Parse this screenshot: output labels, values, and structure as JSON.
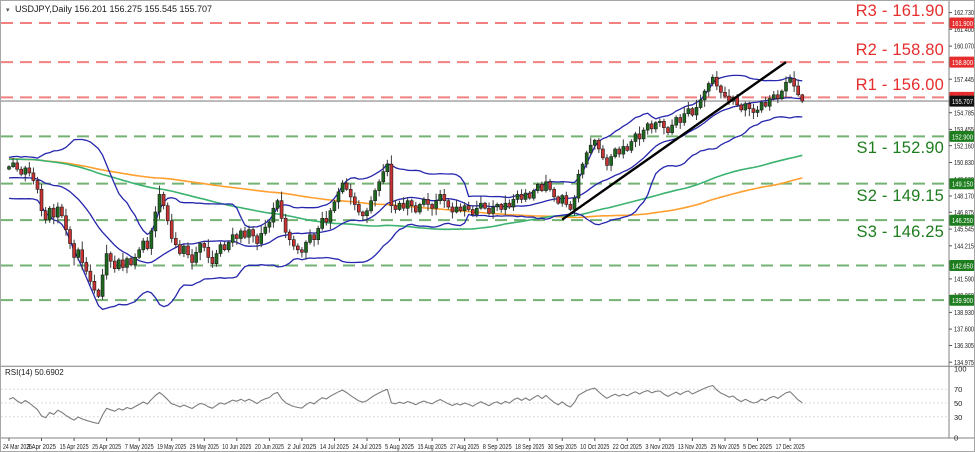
{
  "header": {
    "marker": "▾",
    "symbol_period": "USDJPY,Daily",
    "ohlc": "156.201 156.275 155.545 155.707"
  },
  "rsi": {
    "label": "RSI(14) 50.6902"
  },
  "colors": {
    "resistance": "#e62e2e",
    "support": "#1e7d1e",
    "support_line": "#74b274",
    "resistance_line": "#f28080",
    "bollinger": "#2626ae",
    "ma_fast": "#3cb371",
    "ma_slow": "#ff9f2e",
    "candle_up": "#1d691d",
    "candle_down": "#c93232",
    "wick": "#3a3a3a",
    "trendline": "#000000",
    "rsi_line": "#7d7d7d",
    "current_price": "#111111",
    "current_price_line": "#ababab",
    "axis_text": "#222222",
    "separator": "#808080"
  },
  "chart_data": {
    "type": "candlestick",
    "title": "USDJPY,Daily",
    "current_candle": {
      "open": 156.201,
      "high": 156.275,
      "low": 155.545,
      "close": 155.707
    },
    "current_price_badge": "155.707",
    "price_axis": {
      "top_price": 163.65,
      "bottom_price": 134.65,
      "ticks": [
        162.73,
        161.4,
        160.07,
        157.445,
        154.785,
        153.455,
        152.16,
        150.83,
        149.5,
        148.17,
        146.875,
        145.545,
        144.215,
        142.885,
        141.59,
        140.26,
        138.93,
        137.6,
        136.305,
        134.975
      ]
    },
    "rsi_axis": {
      "ticks": [
        100,
        70,
        50,
        30,
        0
      ],
      "guides": [
        70,
        50,
        30
      ],
      "current": 50.6902
    },
    "x_axis": {
      "candles_per_label": 8,
      "date_labels": [
        "24 Mar 2025",
        "3 Apr 2025",
        "15 Apr 2025",
        "25 Apr 2025",
        "7 May 2025",
        "19 May 2025",
        "29 May 2025",
        "10 Jun 2025",
        "20 Jun 2025",
        "2 Jul 2025",
        "14 Jul 2025",
        "24 Jul 2025",
        "5 Aug 2025",
        "15 Aug 2025",
        "27 Aug 2025",
        "8 Sep 2025",
        "18 Sep 2025",
        "30 Sep 2025",
        "10 Oct 2025",
        "22 Oct 2025",
        "3 Nov 2025",
        "13 Nov 2025",
        "25 Nov 2025",
        "5 Dec 2025",
        "17 Dec 2025"
      ]
    },
    "levels": [
      {
        "name": "R3",
        "label": "R3 - 161.90",
        "price": 161.9,
        "badge": "161.900",
        "kind": "resistance"
      },
      {
        "name": "R2",
        "label": "R2 - 158.80",
        "price": 158.8,
        "badge": "158.800",
        "kind": "resistance"
      },
      {
        "name": "R1",
        "label": "R1 - 156.00",
        "price": 156.0,
        "badge": "156.000",
        "kind": "resistance"
      },
      {
        "name": "S1",
        "label": "S1 - 152.90",
        "price": 152.9,
        "badge": "152.900",
        "kind": "support"
      },
      {
        "name": "S2",
        "label": "S2 - 149.15",
        "price": 149.15,
        "badge": "149.150",
        "kind": "support"
      },
      {
        "name": "S3",
        "label": "S3 - 146.25",
        "price": 146.25,
        "badge": "146.250",
        "kind": "support"
      },
      {
        "name": "S4",
        "label": null,
        "price": 142.65,
        "badge": "142.650",
        "kind": "support"
      },
      {
        "name": "S5",
        "label": null,
        "price": 139.9,
        "badge": "139.900",
        "kind": "support"
      }
    ],
    "trendline": {
      "from_index": 136,
      "from_price": 146.3,
      "to_index": 191,
      "to_price": 158.8
    },
    "indicators": {
      "bollinger_period": 20,
      "bollinger_dev": 2,
      "ma_fast_period": 100,
      "ma_slow_period": 150,
      "rsi_period": 14
    },
    "pre_closes": [
      152.5,
      152.2,
      152.6,
      152.1,
      152.4,
      152.0,
      152.3,
      151.9,
      152.2,
      151.8,
      152.1,
      151.7,
      152.0,
      151.6,
      151.9,
      151.5,
      151.8,
      151.4,
      151.7,
      151.3,
      151.6,
      151.2,
      151.5,
      151.1,
      151.4,
      151.0,
      151.3,
      150.9,
      151.2,
      150.8,
      151.1,
      150.7,
      151.0,
      150.6,
      150.9,
      150.5,
      150.8,
      150.4,
      150.7,
      150.3,
      150.6,
      150.9,
      150.5,
      150.8,
      150.4,
      150.7,
      150.3,
      150.6,
      150.2,
      150.5,
      150.4,
      150.7,
      150.3,
      150.6,
      150.9,
      150.5,
      150.8,
      151.1,
      150.7,
      151.0,
      151.3,
      150.9,
      151.2,
      151.5,
      151.1,
      151.4,
      151.7,
      151.3,
      151.6,
      151.9,
      151.5,
      151.8,
      152.1,
      151.7,
      152.0,
      152.3,
      151.9,
      152.2,
      152.5,
      152.1,
      152.4,
      152.0,
      152.3,
      152.6,
      152.2,
      152.5,
      152.1,
      152.4,
      152.0,
      152.3,
      151.9,
      152.2,
      151.8,
      152.1,
      151.7,
      152.0,
      151.6,
      151.9,
      151.5,
      151.8,
      151.7,
      152.0,
      151.6,
      151.9,
      151.5,
      151.8,
      151.4,
      151.7,
      151.3,
      151.6,
      151.2,
      151.5,
      151.1,
      151.4,
      151.0,
      151.3,
      150.9,
      151.2,
      150.8,
      151.1,
      150.7,
      151.0,
      150.6,
      150.9,
      150.5,
      150.8,
      150.4,
      150.7,
      150.3,
      150.6,
      150.2,
      150.5,
      150.1,
      150.4,
      150.0,
      150.3,
      149.9,
      150.2,
      149.8,
      150.1,
      148.9,
      148.3,
      147.8,
      148.4,
      149.0,
      148.5,
      149.2,
      149.8,
      150.1,
      150.3
    ],
    "closes": [
      150.5,
      150.8,
      150.3,
      149.9,
      150.4,
      150.0,
      149.4,
      148.7,
      147.0,
      146.3,
      147.2,
      146.5,
      147.3,
      146.6,
      145.5,
      144.4,
      143.3,
      143.9,
      142.9,
      142.2,
      141.4,
      140.7,
      140.2,
      141.9,
      143.6,
      143.0,
      142.4,
      143.1,
      142.5,
      143.2,
      142.7,
      143.3,
      143.9,
      144.6,
      144.0,
      145.4,
      146.9,
      148.3,
      147.4,
      146.2,
      144.8,
      144.3,
      143.6,
      144.2,
      143.5,
      142.9,
      143.7,
      144.4,
      144.1,
      143.3,
      142.8,
      143.6,
      144.3,
      143.9,
      144.5,
      145.1,
      144.8,
      145.4,
      144.9,
      145.5,
      145.0,
      144.4,
      145.2,
      145.7,
      146.1,
      147.2,
      147.8,
      146.4,
      145.3,
      144.7,
      144.2,
      143.9,
      143.7,
      144.5,
      145.1,
      144.7,
      145.6,
      146.4,
      146.1,
      147.0,
      147.7,
      148.5,
      149.2,
      148.7,
      148.1,
      147.5,
      146.9,
      146.6,
      147.0,
      147.8,
      148.6,
      149.3,
      150.1,
      150.7,
      147.4,
      147.1,
      147.6,
      147.2,
      147.8,
      147.4,
      146.9,
      147.5,
      147.9,
      147.5,
      147.2,
      147.8,
      148.3,
      147.8,
      147.3,
      146.9,
      147.3,
      147.0,
      147.4,
      147.1,
      146.7,
      147.2,
      147.6,
      147.2,
      146.8,
      147.3,
      147.5,
      147.1,
      147.6,
      147.3,
      147.9,
      148.3,
      147.9,
      148.4,
      148.0,
      148.6,
      149.1,
      148.6,
      149.3,
      148.7,
      148.1,
      147.6,
      148.2,
      147.5,
      147.1,
      148.0,
      149.9,
      150.7,
      151.6,
      152.2,
      152.6,
      151.9,
      151.2,
      150.6,
      151.3,
      151.9,
      151.5,
      152.1,
      151.8,
      152.5,
      153.1,
      152.7,
      153.4,
      153.9,
      153.5,
      154.0,
      154.1,
      153.6,
      153.2,
      153.8,
      154.4,
      154.0,
      154.7,
      155.1,
      154.6,
      155.2,
      155.8,
      156.5,
      157.1,
      157.6,
      156.9,
      156.4,
      156.1,
      155.7,
      156.0,
      155.4,
      155.0,
      155.5,
      155.1,
      154.8,
      155.0,
      155.6,
      155.3,
      155.9,
      156.2,
      155.9,
      156.5,
      157.2,
      157.5,
      156.9,
      156.201,
      155.707
    ]
  }
}
